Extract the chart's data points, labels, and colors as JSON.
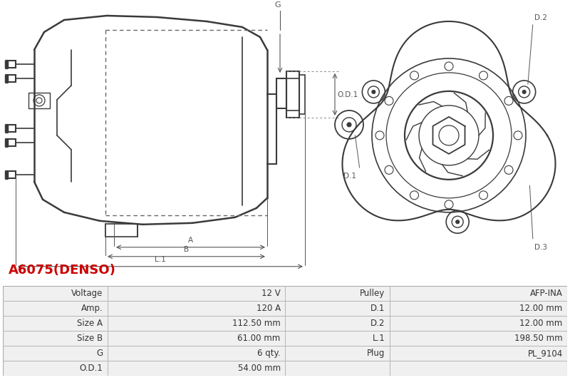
{
  "title": "A6075(DENSO)",
  "title_color": "#cc0000",
  "title_fontsize": 13,
  "bg_color": "#ffffff",
  "table_row_bg1": "#f0f0f0",
  "table_row_bg2": "#ffffff",
  "table_border_color": "#aaaaaa",
  "table_text_color": "#333333",
  "table_fontsize": 8.5,
  "table_data": [
    [
      "Voltage",
      "12 V",
      "Pulley",
      "AFP-INA"
    ],
    [
      "Amp.",
      "120 A",
      "D.1",
      "12.00 mm"
    ],
    [
      "Size A",
      "112.50 mm",
      "D.2",
      "12.00 mm"
    ],
    [
      "Size B",
      "61.00 mm",
      "L.1",
      "198.50 mm"
    ],
    [
      "G",
      "6 qty.",
      "Plug",
      "PL_9104"
    ],
    [
      "O.D.1",
      "54.00 mm",
      "",
      ""
    ]
  ],
  "line_color": "#3a3a3a",
  "dim_color": "#555555",
  "dot_color": "#888888",
  "ann_fontsize": 7.5
}
